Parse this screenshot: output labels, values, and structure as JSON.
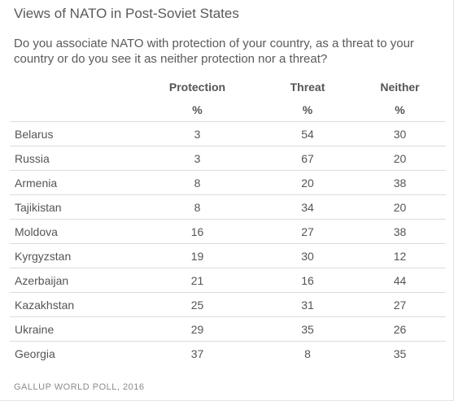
{
  "title": "Views of NATO in Post-Soviet States",
  "subtitle": "Do you associate NATO with protection of your country, as a threat to your country or do you see it as neither protection nor a threat?",
  "source": "GALLUP WORLD POLL, 2016",
  "chart_data": {
    "type": "table",
    "title": "Views of NATO in Post-Soviet States",
    "columns": [
      "",
      "Protection",
      "Threat",
      "Neither"
    ],
    "units": [
      "",
      "%",
      "%",
      "%"
    ],
    "rows": [
      [
        "Belarus",
        3,
        54,
        30
      ],
      [
        "Russia",
        3,
        67,
        20
      ],
      [
        "Armenia",
        8,
        20,
        38
      ],
      [
        "Tajikistan",
        8,
        34,
        20
      ],
      [
        "Moldova",
        16,
        27,
        38
      ],
      [
        "Kyrgyzstan",
        19,
        30,
        12
      ],
      [
        "Azerbaijan",
        21,
        16,
        44
      ],
      [
        "Kazakhstan",
        25,
        31,
        27
      ],
      [
        "Ukraine",
        29,
        35,
        26
      ],
      [
        "Georgia",
        37,
        8,
        35
      ]
    ]
  }
}
